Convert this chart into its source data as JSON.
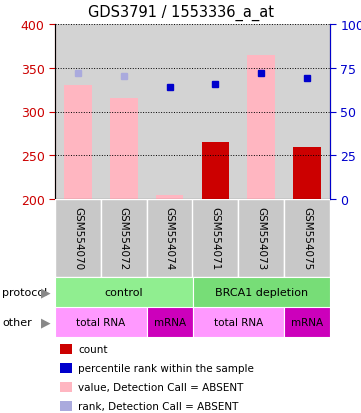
{
  "title": "GDS3791 / 1553336_a_at",
  "samples": [
    "GSM554070",
    "GSM554072",
    "GSM554074",
    "GSM554071",
    "GSM554073",
    "GSM554075"
  ],
  "ylim_left": [
    200,
    400
  ],
  "ylim_right": [
    0,
    100
  ],
  "yticks_left": [
    200,
    250,
    300,
    350,
    400
  ],
  "yticks_right": [
    0,
    25,
    50,
    75,
    100
  ],
  "bar_values_absent": [
    330,
    315,
    205,
    null,
    365,
    null
  ],
  "bar_values_present": [
    null,
    null,
    null,
    265,
    null,
    260
  ],
  "dot_rank_absent": [
    344,
    341,
    null,
    null,
    null,
    null
  ],
  "dot_rank_present": [
    null,
    null,
    328,
    332,
    344,
    338
  ],
  "protocol_groups": [
    {
      "label": "control",
      "start": 0,
      "end": 3,
      "color": "#90EE90"
    },
    {
      "label": "BRCA1 depletion",
      "start": 3,
      "end": 6,
      "color": "#77DD77"
    }
  ],
  "other_groups": [
    {
      "label": "total RNA",
      "start": 0,
      "end": 2,
      "color": "#FF99FF"
    },
    {
      "label": "mRNA",
      "start": 2,
      "end": 3,
      "color": "#DD00CC"
    },
    {
      "label": "total RNA",
      "start": 3,
      "end": 5,
      "color": "#FF99FF"
    },
    {
      "label": "mRNA",
      "start": 5,
      "end": 6,
      "color": "#DD00CC"
    }
  ],
  "bar_color_absent": "#FFB6C1",
  "bar_color_present": "#CC0000",
  "dot_color_absent": "#AAAADD",
  "dot_color_present": "#0000CC",
  "left_axis_color": "#CC0000",
  "right_axis_color": "#0000CC",
  "bg_color": "#D3D3D3",
  "legend_items": [
    {
      "color": "#CC0000",
      "label": "count"
    },
    {
      "color": "#0000CC",
      "label": "percentile rank within the sample"
    },
    {
      "color": "#FFB6C1",
      "label": "value, Detection Call = ABSENT"
    },
    {
      "color": "#AAAADD",
      "label": "rank, Detection Call = ABSENT"
    }
  ]
}
